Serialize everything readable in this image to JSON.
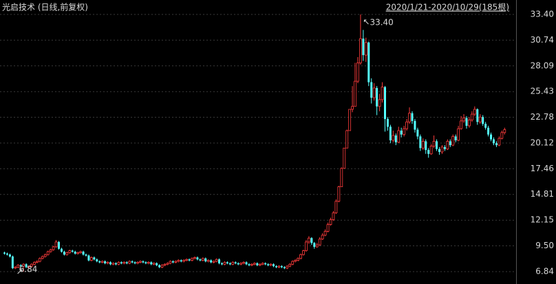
{
  "chart_data": {
    "type": "candlestick",
    "title": "光启技术 (日线,前复权)",
    "subtitle": "2020/1/21-2020/10/29(185根)",
    "up_color": "#ff3c3c",
    "down_color": "#54ffff",
    "grid": true,
    "ylim": [
      5.56,
      34.89
    ],
    "yticks": [
      6.84,
      {
        "value": 9.5,
        "label": "9.50"
      },
      12.15,
      14.81,
      17.46,
      20.12,
      22.78,
      25.43,
      28.09,
      30.74,
      {
        "value": 33.4,
        "label": "33.40"
      }
    ],
    "annotations": {
      "max_label": "33.40",
      "min_label": "6.84"
    },
    "series": {
      "open": [
        8.8,
        8.7,
        8.6,
        8.4,
        7.2,
        7.3,
        7.5,
        7.4,
        7.6,
        7.3,
        7.4,
        7.6,
        7.8,
        7.9,
        8.2,
        8.4,
        8.6,
        8.9,
        9.1,
        9.4,
        9.9,
        9.2,
        8.9,
        8.6,
        8.8,
        9.0,
        8.9,
        8.7,
        8.8,
        8.9,
        8.6,
        8.5,
        8.0,
        8.3,
        8.1,
        7.9,
        7.8,
        7.9,
        7.7,
        7.8,
        7.6,
        7.7,
        7.6,
        7.8,
        7.7,
        7.8,
        7.7,
        7.9,
        7.8,
        7.7,
        7.8,
        7.9,
        7.8,
        7.7,
        7.8,
        7.6,
        7.7,
        7.5,
        7.3,
        7.5,
        7.6,
        7.7,
        7.9,
        7.8,
        7.9,
        8.0,
        7.9,
        8.0,
        8.1,
        8.0,
        8.2,
        8.3,
        8.1,
        8.0,
        8.2,
        7.9,
        8.0,
        7.8,
        7.9,
        8.1,
        7.7,
        7.6,
        7.8,
        7.7,
        7.6,
        7.8,
        7.7,
        7.6,
        7.7,
        7.8,
        7.6,
        7.5,
        7.6,
        7.7,
        7.5,
        7.6,
        7.7,
        7.6,
        7.5,
        7.6,
        7.4,
        7.3,
        7.4,
        7.3,
        7.2,
        7.4,
        7.6,
        7.9,
        8.0,
        8.2,
        8.6,
        9.0,
        9.9,
        10.3,
        9.8,
        9.4,
        9.6,
        10.2,
        10.6,
        11.0,
        11.7,
        12.2,
        12.9,
        14.1,
        15.6,
        17.5,
        19.6,
        21.4,
        23.6,
        23.9,
        26.5,
        28.4,
        30.9,
        29.2,
        30.5,
        26.4,
        24.8,
        25.8,
        23.9,
        24.6,
        25.9,
        22.6,
        21.8,
        20.4,
        20.9,
        20.2,
        21.4,
        21.0,
        21.6,
        22.3,
        23.2,
        22.4,
        21.5,
        20.8,
        19.6,
        20.3,
        19.4,
        19.0,
        19.8,
        20.3,
        19.5,
        19.2,
        19.7,
        19.5,
        20.3,
        19.9,
        20.8,
        20.4,
        21.6,
        22.4,
        22.7,
        21.9,
        22.5,
        23.1,
        23.6,
        22.3,
        22.8,
        22.1,
        21.7,
        21.0,
        20.5,
        20.1,
        19.9,
        20.6,
        21.2
      ],
      "high": [
        8.9,
        8.8,
        8.7,
        8.5,
        7.4,
        7.6,
        7.6,
        7.7,
        7.7,
        7.5,
        7.7,
        7.9,
        8.0,
        8.3,
        8.5,
        8.7,
        9.0,
        9.2,
        9.5,
        10.1,
        10.0,
        9.3,
        9.0,
        8.9,
        9.1,
        9.1,
        9.0,
        8.9,
        9.0,
        9.0,
        8.7,
        8.6,
        8.4,
        8.4,
        8.2,
        8.0,
        8.0,
        8.0,
        7.9,
        7.9,
        7.8,
        7.8,
        7.9,
        7.9,
        7.9,
        7.9,
        8.0,
        8.0,
        7.9,
        7.9,
        8.0,
        8.0,
        7.9,
        7.9,
        7.9,
        7.8,
        7.8,
        7.6,
        7.6,
        7.7,
        7.8,
        8.0,
        8.0,
        8.0,
        8.1,
        8.1,
        8.1,
        8.2,
        8.2,
        8.3,
        8.4,
        8.4,
        8.2,
        8.3,
        8.3,
        8.1,
        8.1,
        8.0,
        8.2,
        8.2,
        7.8,
        7.9,
        7.9,
        7.8,
        7.9,
        7.9,
        7.8,
        7.8,
        7.9,
        7.9,
        7.7,
        7.7,
        7.8,
        7.8,
        7.7,
        7.8,
        7.8,
        7.7,
        7.7,
        7.7,
        7.5,
        7.5,
        7.5,
        7.4,
        7.5,
        7.7,
        8.0,
        8.1,
        8.3,
        8.7,
        9.1,
        10.1,
        10.5,
        10.4,
        9.9,
        9.8,
        10.4,
        10.8,
        11.2,
        11.9,
        12.4,
        13.1,
        14.3,
        15.7,
        17.6,
        19.6,
        21.5,
        23.6,
        26.0,
        28.4,
        29.0,
        33.4,
        31.8,
        31.0,
        30.6,
        26.8,
        26.3,
        26.0,
        25.2,
        26.4,
        26.0,
        22.8,
        22.0,
        21.4,
        21.1,
        21.8,
        21.7,
        21.9,
        22.6,
        23.8,
        23.4,
        22.6,
        21.7,
        21.0,
        20.6,
        20.5,
        19.6,
        20.0,
        20.9,
        20.5,
        19.7,
        19.9,
        19.9,
        20.5,
        20.5,
        21.0,
        21.0,
        21.9,
        22.9,
        23.1,
        22.9,
        22.8,
        23.4,
        23.9,
        23.7,
        23.1,
        23.0,
        22.3,
        21.9,
        21.2,
        20.7,
        20.3,
        20.8,
        21.4,
        21.7
      ],
      "low": [
        8.6,
        8.5,
        8.3,
        7.1,
        7.1,
        7.2,
        7.3,
        6.84,
        7.2,
        7.2,
        7.3,
        7.5,
        7.7,
        7.8,
        8.1,
        8.3,
        8.5,
        8.8,
        9.0,
        9.3,
        9.1,
        8.8,
        8.5,
        8.5,
        8.7,
        8.8,
        8.6,
        8.6,
        8.7,
        8.5,
        8.4,
        7.9,
        7.9,
        8.0,
        7.8,
        7.7,
        7.7,
        7.6,
        7.6,
        7.5,
        7.5,
        7.5,
        7.5,
        7.6,
        7.6,
        7.6,
        7.6,
        7.7,
        7.6,
        7.6,
        7.7,
        7.7,
        7.6,
        7.6,
        7.5,
        7.5,
        7.4,
        7.2,
        7.2,
        7.4,
        7.5,
        7.6,
        7.7,
        7.7,
        7.8,
        7.8,
        7.8,
        7.9,
        7.9,
        7.9,
        8.1,
        8.0,
        7.9,
        7.9,
        7.8,
        7.8,
        7.7,
        7.7,
        7.8,
        7.6,
        7.5,
        7.5,
        7.6,
        7.5,
        7.5,
        7.6,
        7.5,
        7.5,
        7.6,
        7.5,
        7.4,
        7.4,
        7.5,
        7.4,
        7.4,
        7.5,
        7.5,
        7.4,
        7.4,
        7.3,
        7.2,
        7.2,
        7.2,
        7.1,
        7.1,
        7.3,
        7.5,
        7.8,
        7.9,
        8.1,
        8.5,
        8.9,
        9.7,
        9.6,
        9.2,
        9.3,
        9.5,
        10.1,
        10.5,
        10.9,
        11.6,
        12.1,
        12.8,
        14.0,
        15.6,
        17.5,
        19.6,
        21.4,
        23.3,
        23.9,
        26.3,
        28.2,
        28.6,
        28.5,
        26.0,
        24.2,
        24.5,
        23.0,
        23.4,
        24.3,
        21.3,
        21.4,
        20.1,
        20.2,
        19.9,
        20.1,
        20.7,
        20.8,
        21.4,
        22.1,
        22.1,
        21.2,
        20.5,
        19.3,
        19.4,
        19.0,
        18.6,
        18.9,
        19.6,
        19.3,
        18.9,
        19.0,
        19.3,
        19.4,
        19.7,
        19.8,
        20.2,
        20.3,
        21.5,
        22.2,
        21.6,
        21.7,
        22.3,
        22.9,
        22.0,
        22.1,
        21.9,
        21.5,
        20.8,
        20.3,
        19.9,
        19.7,
        19.8,
        20.5,
        21.0
      ],
      "close": [
        8.7,
        8.6,
        8.4,
        7.2,
        7.3,
        7.5,
        7.4,
        7.6,
        7.3,
        7.4,
        7.6,
        7.8,
        7.9,
        8.2,
        8.4,
        8.6,
        8.9,
        9.1,
        9.4,
        9.9,
        9.2,
        8.9,
        8.6,
        8.8,
        9.0,
        8.9,
        8.7,
        8.8,
        8.9,
        8.6,
        8.5,
        8.0,
        8.3,
        8.1,
        7.9,
        7.8,
        7.9,
        7.7,
        7.8,
        7.6,
        7.7,
        7.6,
        7.8,
        7.7,
        7.8,
        7.7,
        7.9,
        7.8,
        7.7,
        7.8,
        7.9,
        7.8,
        7.7,
        7.8,
        7.6,
        7.7,
        7.5,
        7.3,
        7.5,
        7.6,
        7.7,
        7.9,
        7.8,
        7.9,
        8.0,
        7.9,
        8.0,
        8.1,
        8.0,
        8.2,
        8.3,
        8.1,
        8.0,
        8.2,
        7.9,
        8.0,
        7.8,
        7.9,
        8.1,
        7.7,
        7.6,
        7.8,
        7.7,
        7.6,
        7.8,
        7.7,
        7.6,
        7.7,
        7.8,
        7.6,
        7.5,
        7.6,
        7.7,
        7.5,
        7.6,
        7.7,
        7.6,
        7.5,
        7.6,
        7.4,
        7.3,
        7.4,
        7.3,
        7.2,
        7.4,
        7.6,
        7.9,
        8.0,
        8.2,
        8.6,
        9.0,
        9.9,
        10.3,
        9.8,
        9.4,
        9.6,
        10.2,
        10.6,
        11.0,
        11.7,
        12.2,
        12.9,
        14.1,
        15.6,
        17.5,
        19.6,
        21.4,
        23.6,
        23.9,
        26.5,
        28.4,
        30.9,
        29.2,
        30.5,
        26.4,
        24.8,
        25.8,
        23.9,
        24.6,
        25.9,
        22.6,
        21.8,
        20.4,
        20.9,
        20.2,
        21.4,
        21.0,
        21.6,
        22.3,
        23.2,
        22.4,
        21.5,
        20.8,
        19.6,
        20.3,
        19.4,
        19.0,
        19.8,
        20.3,
        19.5,
        19.2,
        19.7,
        19.5,
        20.3,
        19.9,
        20.8,
        20.4,
        21.6,
        22.4,
        22.7,
        21.9,
        22.5,
        23.1,
        23.6,
        22.3,
        22.8,
        22.1,
        21.7,
        21.0,
        20.5,
        20.1,
        19.9,
        20.6,
        21.2,
        21.5
      ]
    }
  }
}
